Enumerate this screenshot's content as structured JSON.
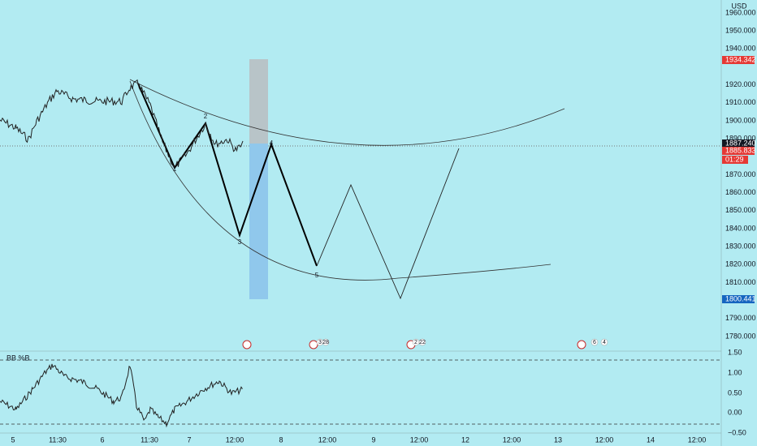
{
  "price_axis": {
    "currency": "USD",
    "ticks": [
      "1960.000",
      "1950.000",
      "1940.000",
      "1920.000",
      "1910.000",
      "1900.000",
      "1890.000",
      "1870.000",
      "1860.000",
      "1850.000",
      "1840.000",
      "1830.000",
      "1820.000",
      "1810.000",
      "1790.000",
      "1780.000"
    ]
  },
  "price_tags": [
    "1934.342",
    "1887.240",
    "1885.833",
    "01:29",
    "1800.441"
  ],
  "time_axis": [
    "5",
    "11:30",
    "6",
    "11:30",
    "7",
    "12:00",
    "8",
    "12:00",
    "9",
    "12:00",
    "12",
    "12:00",
    "13",
    "12:00",
    "14",
    "12:00"
  ],
  "wave_labels": [
    "1",
    "2",
    "3",
    "4",
    "5"
  ],
  "events": [
    "3",
    "28",
    "2",
    "22",
    "6",
    "4"
  ],
  "indicator": {
    "name": "BB %B",
    "ticks": [
      "1.50",
      "1.00",
      "0.50",
      "0.00",
      "−0.50"
    ]
  }
}
